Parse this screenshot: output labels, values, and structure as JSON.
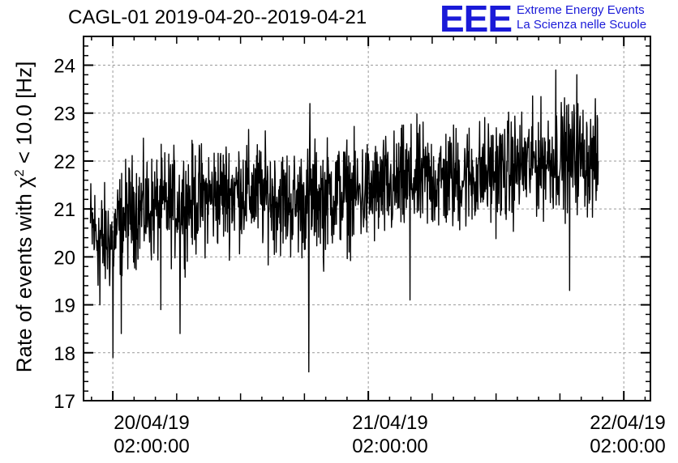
{
  "title": "CAGL-01 2019-04-20--2019-04-21",
  "logo": {
    "mark": "EEE",
    "line1": "Extreme Energy Events",
    "line2": "La Scienza nelle Scuole",
    "color": "#1a1ad8"
  },
  "chart_data": {
    "type": "line",
    "title": "CAGL-01 2019-04-20--2019-04-21",
    "xlabel": "",
    "ylabel_parts": [
      "Rate of events with ",
      "χ",
      "2",
      " < 10.0 [Hz]"
    ],
    "ylim": [
      17,
      24.6
    ],
    "yticks": [
      17,
      18,
      19,
      20,
      21,
      22,
      23,
      24
    ],
    "xlim_hours": [
      -2.75,
      50.5
    ],
    "xticks": [
      {
        "hours": 0,
        "line1": "20/04/19",
        "line2": "02:00:00"
      },
      {
        "hours": 24,
        "line1": "21/04/19",
        "line2": "02:00:00"
      },
      {
        "hours": 48,
        "line1": "22/04/19",
        "line2": "02:00:00"
      }
    ],
    "grid": true,
    "series": [
      {
        "color": "#000000",
        "x_start_hours": -2.1,
        "x_end_hours": 45.6,
        "trend": [
          [
            -2.1,
            20.6
          ],
          [
            -1.6,
            20.5
          ],
          [
            -1,
            20.3
          ],
          [
            0,
            20.4
          ],
          [
            1,
            20.8
          ],
          [
            2,
            21.0
          ],
          [
            4,
            21.0
          ],
          [
            6,
            21.1
          ],
          [
            8,
            21.2
          ],
          [
            10,
            21.3
          ],
          [
            12,
            21.4
          ],
          [
            14,
            21.3
          ],
          [
            17,
            21.1
          ],
          [
            20,
            21.3
          ],
          [
            23,
            21.3
          ],
          [
            26,
            21.4
          ],
          [
            28,
            21.6
          ],
          [
            31,
            21.6
          ],
          [
            34,
            21.7
          ],
          [
            37,
            21.8
          ],
          [
            40,
            22.0
          ],
          [
            42,
            22.1
          ],
          [
            44,
            22.1
          ],
          [
            45.6,
            21.9
          ]
        ],
        "noise_amplitude": 0.55,
        "spikes": [
          {
            "hours": 0.0,
            "value": 17.9
          },
          {
            "hours": 0.8,
            "value": 18.4
          },
          {
            "hours": -1.2,
            "value": 19.0
          },
          {
            "hours": 4.5,
            "value": 18.9
          },
          {
            "hours": 6.3,
            "value": 18.4
          },
          {
            "hours": 18.4,
            "value": 17.6
          },
          {
            "hours": 18.5,
            "value": 23.2
          },
          {
            "hours": 19.8,
            "value": 19.7
          },
          {
            "hours": 27.9,
            "value": 19.1
          },
          {
            "hours": 42.9,
            "value": 19.3
          },
          {
            "hours": 41.6,
            "value": 23.9
          },
          {
            "hours": 43.6,
            "value": 23.8
          }
        ]
      }
    ]
  }
}
